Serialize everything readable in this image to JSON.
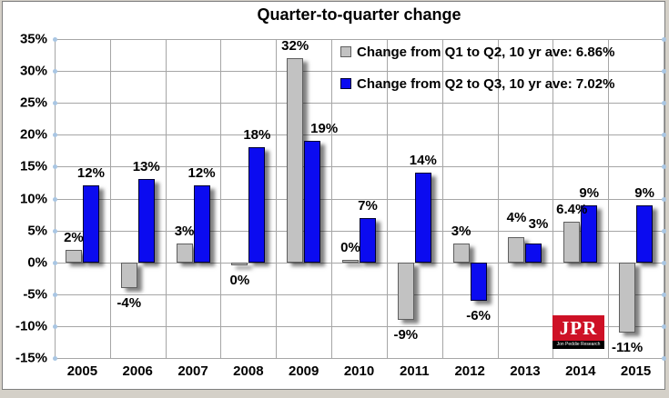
{
  "chart_data": {
    "type": "bar",
    "title": "Quarter-to-quarter change",
    "categories": [
      "2005",
      "2006",
      "2007",
      "2008",
      "2009",
      "2010",
      "2011",
      "2012",
      "2013",
      "2014",
      "2015"
    ],
    "series": [
      {
        "name": "Change from Q1 to Q2, 10 yr ave: 6.86%",
        "color": "#c2c2c2",
        "border_color": "#5f5f5f",
        "values": [
          2,
          -4,
          3,
          -0.4,
          32,
          0.4,
          -9,
          3,
          4,
          6.4,
          -11
        ],
        "labels": [
          "2%",
          "-4%",
          "3%",
          "0%",
          "32%",
          "0%",
          "-9%",
          "3%",
          "4%",
          "6.4%",
          "-11%"
        ]
      },
      {
        "name": "Change from Q2 to Q3, 10 yr ave: 7.02%",
        "color": "#0b0bf0",
        "border_color": "#000030",
        "values": [
          12,
          13,
          12,
          18,
          19,
          7,
          14,
          -6,
          3,
          9,
          9
        ],
        "labels": [
          "12%",
          "13%",
          "12%",
          "18%",
          "19%",
          "7%",
          "14%",
          "-6%",
          "3%",
          "9%",
          "9%"
        ]
      }
    ],
    "ylim": [
      -15,
      35
    ],
    "ytick_step": 5,
    "yticks": [
      "35%",
      "30%",
      "25%",
      "20%",
      "15%",
      "10%",
      "5%",
      "0%",
      "-5%",
      "-10%",
      "-15%"
    ],
    "grid": true,
    "legend_position": "top-right",
    "label_offsets": {
      "4-1": [
        13,
        0
      ],
      "8-1": [
        5,
        -8
      ],
      "8-0": [
        0,
        -8
      ]
    }
  },
  "branding": {
    "logo_text": "JPR",
    "logo_subtext": "Jon Peddie Research",
    "logo_bg": "#ce1126"
  },
  "colors": {
    "gridline": "#a6a6a6",
    "grid_end_dot": "#a9c6e3",
    "frame_border": "#7f7f7f",
    "page_background": "#d4d0c8",
    "chart_background": "#ffffff"
  }
}
